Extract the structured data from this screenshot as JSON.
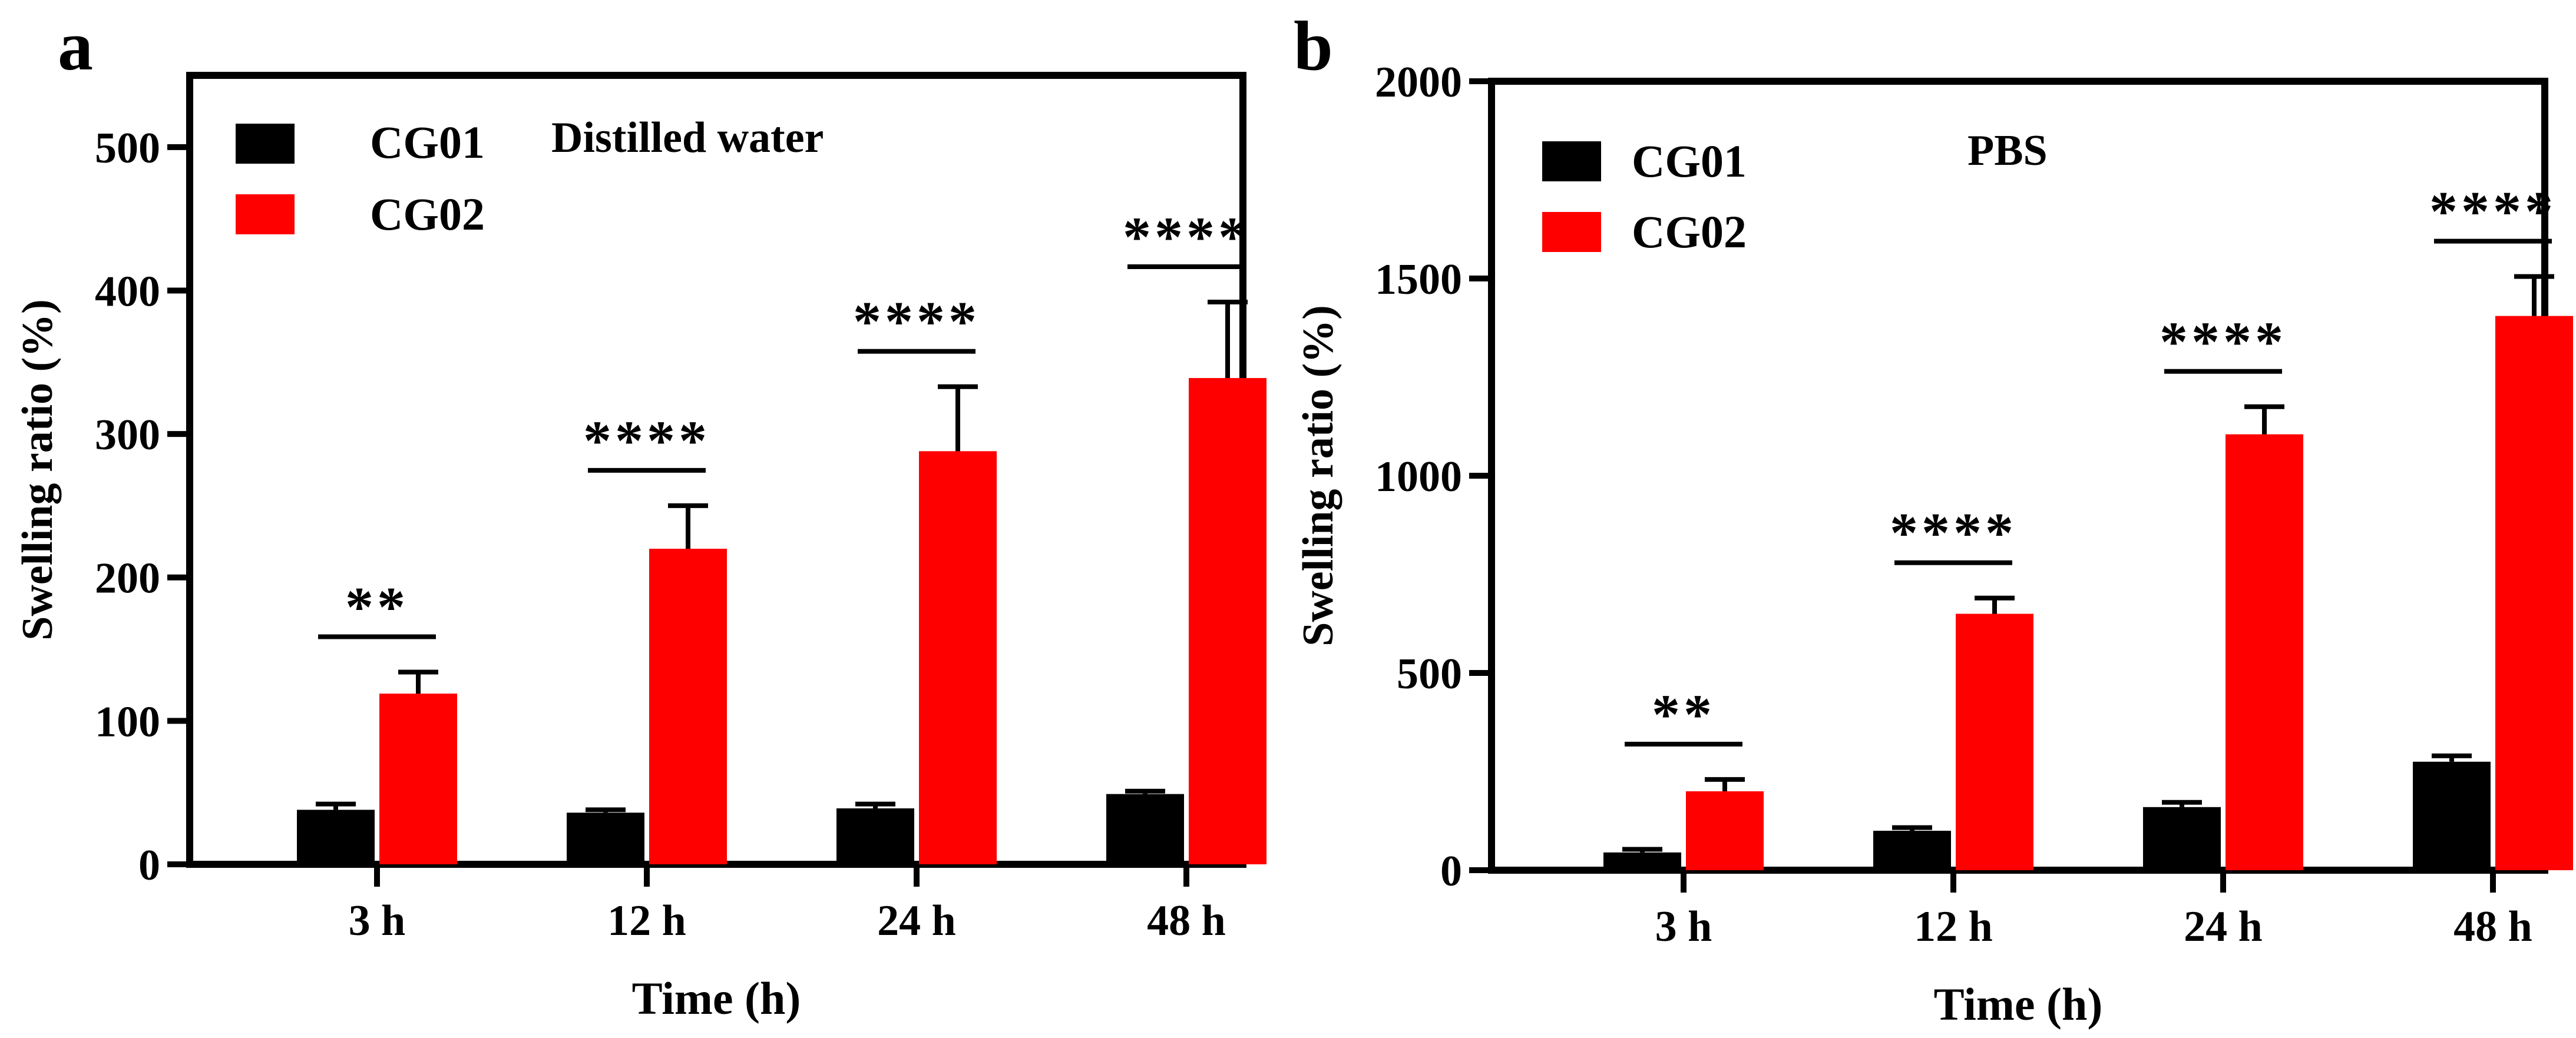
{
  "chart_data": [
    {
      "panel_label": "a",
      "type": "bar",
      "title": "Distilled water",
      "xlabel": "Time (h)",
      "ylabel": "Swelling ratio (%)",
      "ylim": [
        0,
        550
      ],
      "yticks": [
        0,
        100,
        200,
        300,
        400,
        500
      ],
      "categories": [
        "3 h",
        "12 h",
        "24 h",
        "48 h"
      ],
      "series": [
        {
          "name": "CG01",
          "color": "#000000",
          "values": [
            38,
            36,
            39,
            49
          ],
          "errors": [
            4,
            2,
            3,
            2
          ]
        },
        {
          "name": "CG02",
          "color": "#ff0000",
          "values": [
            119,
            220,
            288,
            339
          ],
          "errors": [
            15,
            30,
            45,
            53
          ]
        }
      ],
      "significance": [
        "**",
        "****",
        "****",
        "****"
      ],
      "grid": false,
      "legend": "top-left"
    },
    {
      "panel_label": "b",
      "type": "bar",
      "title": "PBS",
      "xlabel": "Time (h)",
      "ylabel": "Swelling ratio (%)",
      "ylim": [
        0,
        2000
      ],
      "yticks": [
        0,
        500,
        1000,
        1500,
        2000
      ],
      "categories": [
        "3 h",
        "12 h",
        "24 h",
        "48 h"
      ],
      "series": [
        {
          "name": "CG01",
          "color": "#000000",
          "values": [
            45,
            100,
            160,
            275
          ],
          "errors": [
            8,
            8,
            12,
            15
          ]
        },
        {
          "name": "CG02",
          "color": "#ff0000",
          "values": [
            200,
            650,
            1105,
            1405
          ],
          "errors": [
            30,
            40,
            70,
            100
          ]
        }
      ],
      "significance": [
        "**",
        "****",
        "****",
        "****"
      ],
      "grid": false,
      "legend": "top-left"
    }
  ]
}
